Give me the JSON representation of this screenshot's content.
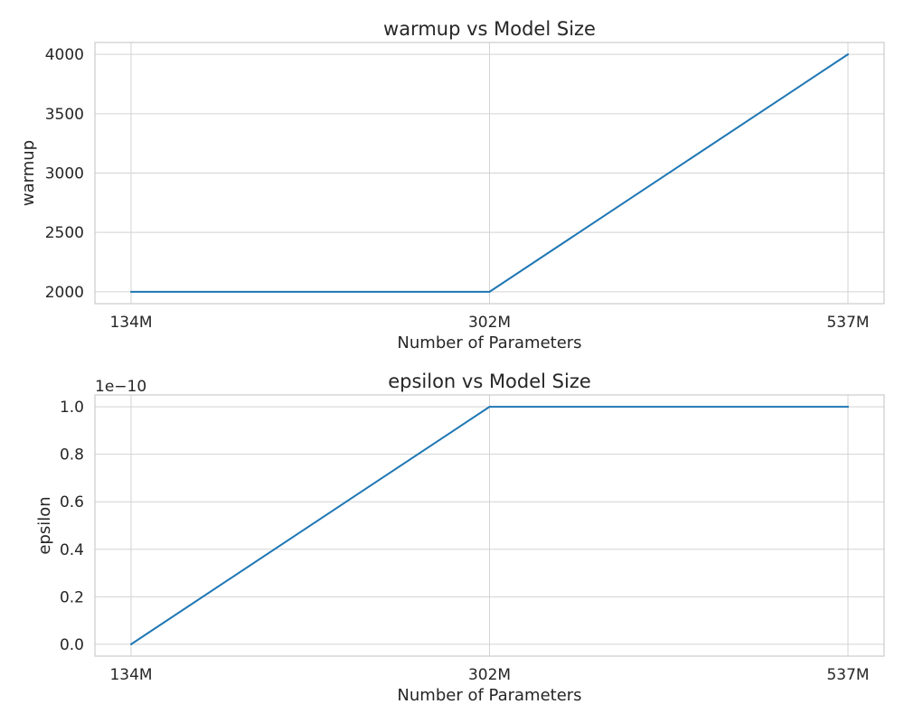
{
  "chart_data": [
    {
      "type": "line",
      "title": "warmup vs Model Size",
      "xlabel": "Number of Parameters",
      "ylabel": "warmup",
      "x_categories": [
        "134M",
        "302M",
        "537M"
      ],
      "x_params_millions": [
        134,
        302,
        537
      ],
      "y_ticks": [
        2000,
        2500,
        3000,
        3500,
        4000
      ],
      "y_tick_labels": [
        "2000",
        "2500",
        "3000",
        "3500",
        "4000"
      ],
      "ylim": [
        1900,
        4100
      ],
      "grid": true,
      "series": [
        {
          "values": [
            2000,
            2000,
            4000
          ],
          "color": "#1f77b4"
        }
      ]
    },
    {
      "type": "line",
      "title": "epsilon vs Model Size",
      "xlabel": "Number of Parameters",
      "ylabel": "epsilon",
      "offset_text": "1e−10",
      "x_categories": [
        "134M",
        "302M",
        "537M"
      ],
      "x_params_millions": [
        134,
        302,
        537
      ],
      "y_ticks": [
        0.0,
        0.2,
        0.4,
        0.6,
        0.8,
        1.0
      ],
      "y_tick_labels": [
        "0.0",
        "0.2",
        "0.4",
        "0.6",
        "0.8",
        "1.0"
      ],
      "ylim": [
        -0.05,
        1.05
      ],
      "grid": true,
      "series": [
        {
          "values": [
            0.0,
            1.0,
            1.0
          ],
          "color": "#1f77b4"
        }
      ]
    }
  ]
}
